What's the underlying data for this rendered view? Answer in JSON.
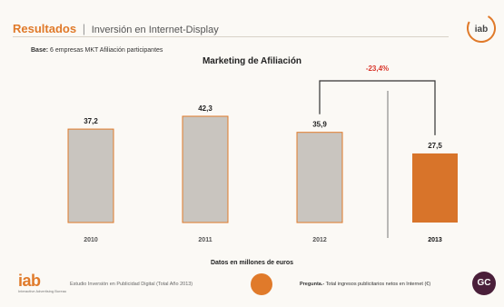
{
  "header": {
    "title": "Resultados",
    "separator": "|",
    "subtitle": "Inversión en Internet-Display"
  },
  "base_note": {
    "label": "Base:",
    "text": "6 empresas MKT Afiliación participantes"
  },
  "footer": {
    "logo_text": "iab",
    "logo_tagline": "Interactive Advertising Bureau",
    "study": "Estudio Inversión en Publicidad Digital (Total Año 2013)",
    "question_label": "Pregunta.-",
    "question_text": "Total ingresos publicitarios netos en Internet (€)",
    "badge": "GC"
  },
  "top_logo": "iab",
  "colors": {
    "accent": "#e07a2a",
    "bar_grey": "#c9c5bf",
    "bar_highlight": "#d8742a",
    "change_text": "#d9362b"
  },
  "chart_data": {
    "type": "bar",
    "title": "Marketing de Afiliación",
    "categories": [
      "2010",
      "2011",
      "2012",
      "2013"
    ],
    "values": [
      37.2,
      42.3,
      35.9,
      27.5
    ],
    "value_labels": [
      "37,2",
      "42,3",
      "35,9",
      "27,5"
    ],
    "highlight_index": 3,
    "xlabel": "Datos en millones de euros",
    "ylabel": "",
    "ylim": [
      0,
      42.3
    ],
    "annotation": {
      "text": "-23,4%",
      "from_category": "2012",
      "to_category": "2013"
    }
  }
}
